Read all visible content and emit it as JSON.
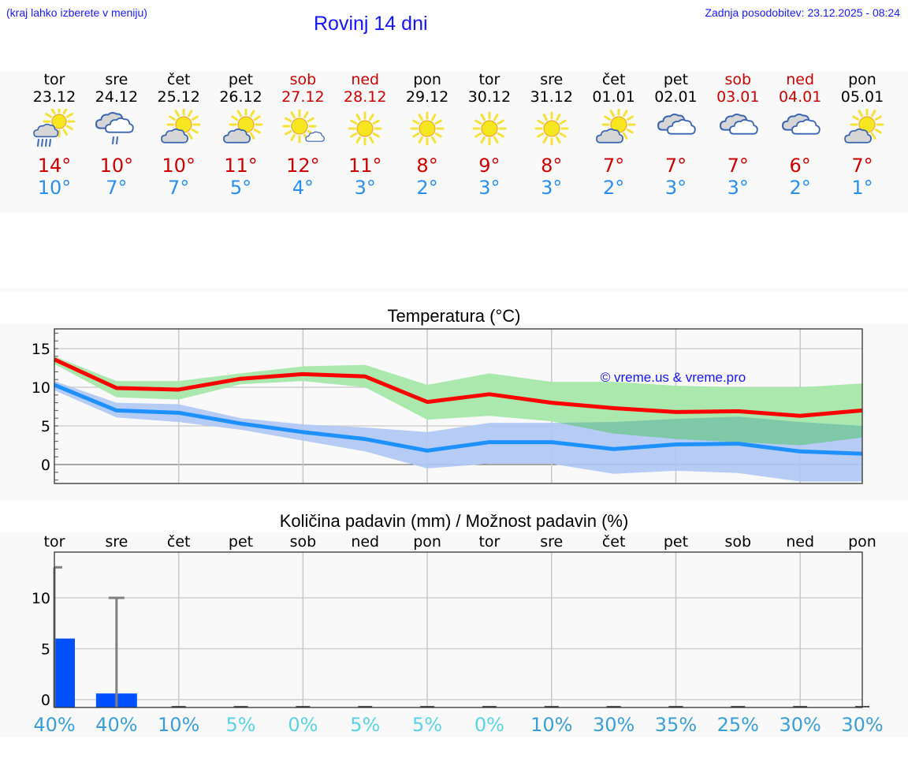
{
  "header": {
    "menu_hint": "(kraj lahko izberete v meniju)",
    "title": "Rovinj 14 dni",
    "last_update": "Zadnja posodobitev: 23.12.2025 - 08:24"
  },
  "forecast": {
    "days": [
      {
        "name": "tor",
        "date": "23.12",
        "icon": "partly-sunny-rain-icon",
        "tmax": "14°",
        "tmin": "10°",
        "weekend": false
      },
      {
        "name": "sre",
        "date": "24.12",
        "icon": "cloudy-light-rain-icon",
        "tmax": "10°",
        "tmin": "7°",
        "weekend": false
      },
      {
        "name": "čet",
        "date": "25.12",
        "icon": "partly-sunny-icon",
        "tmax": "10°",
        "tmin": "7°",
        "weekend": false
      },
      {
        "name": "pet",
        "date": "26.12",
        "icon": "partly-sunny-icon",
        "tmax": "11°",
        "tmin": "5°",
        "weekend": false
      },
      {
        "name": "sob",
        "date": "27.12",
        "icon": "mostly-sunny-icon",
        "tmax": "12°",
        "tmin": "4°",
        "weekend": true
      },
      {
        "name": "ned",
        "date": "28.12",
        "icon": "sunny-icon",
        "tmax": "11°",
        "tmin": "3°",
        "weekend": true
      },
      {
        "name": "pon",
        "date": "29.12",
        "icon": "sunny-icon",
        "tmax": "8°",
        "tmin": "2°",
        "weekend": false
      },
      {
        "name": "tor",
        "date": "30.12",
        "icon": "sunny-icon",
        "tmax": "9°",
        "tmin": "3°",
        "weekend": false
      },
      {
        "name": "sre",
        "date": "31.12",
        "icon": "sunny-icon",
        "tmax": "8°",
        "tmin": "3°",
        "weekend": false
      },
      {
        "name": "čet",
        "date": "01.01",
        "icon": "partly-sunny-icon",
        "tmax": "7°",
        "tmin": "2°",
        "weekend": false
      },
      {
        "name": "pet",
        "date": "02.01",
        "icon": "cloudy-icon",
        "tmax": "7°",
        "tmin": "3°",
        "weekend": false
      },
      {
        "name": "sob",
        "date": "03.01",
        "icon": "cloudy-icon",
        "tmax": "7°",
        "tmin": "3°",
        "weekend": true
      },
      {
        "name": "ned",
        "date": "04.01",
        "icon": "cloudy-icon",
        "tmax": "6°",
        "tmin": "2°",
        "weekend": true
      },
      {
        "name": "pon",
        "date": "05.01",
        "icon": "partly-sunny-icon",
        "tmax": "7°",
        "tmin": "1°",
        "weekend": false
      }
    ]
  },
  "colors": {
    "max_line": "#ff0000",
    "max_band": "#abe8ae",
    "min_line": "#1e90ff",
    "min_band": "#aec6f4",
    "overlap_band": "#7fc8a8",
    "precip_bar": "#0050ff",
    "error_bar": "#808080",
    "weekend": "#cc0000",
    "tmax": "#cc0000",
    "tmin": "#2a8ff0",
    "pct_high": "#3a9fd6",
    "pct_low": "#5ad3e6",
    "watermark": "#1414ff"
  },
  "chart_data": [
    {
      "type": "line",
      "title": "Temperatura (°C)",
      "xlabel": "",
      "ylabel": "°C",
      "ylim": [
        -2.5,
        17.5
      ],
      "yticks": [
        0,
        5,
        10,
        15
      ],
      "grid": true,
      "watermark": "© vreme.us & vreme.pro",
      "x": [
        "23.12",
        "24.12",
        "25.12",
        "26.12",
        "27.12",
        "28.12",
        "29.12",
        "30.12",
        "31.12",
        "01.01",
        "02.01",
        "03.01",
        "04.01",
        "05.01"
      ],
      "series": [
        {
          "name": "Max",
          "values": [
            13.6,
            9.9,
            9.7,
            11.1,
            11.7,
            11.4,
            8.1,
            9.1,
            8.0,
            7.3,
            6.8,
            6.9,
            6.3,
            7.0
          ]
        },
        {
          "name": "Max range low",
          "values": [
            13.0,
            8.7,
            8.4,
            10.4,
            10.8,
            10.0,
            5.8,
            6.3,
            5.6,
            4.0,
            3.3,
            2.9,
            2.5,
            3.5
          ]
        },
        {
          "name": "Max range high",
          "values": [
            14.0,
            10.8,
            10.8,
            11.8,
            12.7,
            12.9,
            10.3,
            11.8,
            10.7,
            10.7,
            10.2,
            10.0,
            10.0,
            10.5
          ]
        },
        {
          "name": "Min",
          "values": [
            10.3,
            7.0,
            6.7,
            5.3,
            4.2,
            3.3,
            1.8,
            2.9,
            2.9,
            2.0,
            2.6,
            2.7,
            1.7,
            1.4
          ]
        },
        {
          "name": "Min range low",
          "values": [
            9.6,
            6.1,
            5.5,
            4.5,
            3.1,
            1.7,
            -0.5,
            0.1,
            0.1,
            -1.2,
            -0.8,
            -1.1,
            -2.2,
            -2.2
          ]
        },
        {
          "name": "Min range high",
          "values": [
            10.8,
            8.0,
            7.8,
            6.0,
            5.2,
            4.8,
            4.2,
            5.4,
            5.4,
            5.5,
            5.9,
            6.2,
            5.5,
            5.0
          ]
        }
      ]
    },
    {
      "type": "bar",
      "title": "Količina padavin (mm) / Možnost padavin (%)",
      "xlabel": "",
      "ylabel": "mm",
      "ylim": [
        -0.8,
        14.5
      ],
      "yticks": [
        0,
        5,
        10
      ],
      "grid": true,
      "categories": [
        "tor",
        "sre",
        "čet",
        "pet",
        "sob",
        "ned",
        "pon",
        "tor",
        "sre",
        "čet",
        "pet",
        "sob",
        "ned",
        "pon"
      ],
      "values": [
        6.0,
        0.6,
        0,
        0,
        0,
        0,
        0,
        0,
        0,
        0,
        0,
        0,
        0,
        0
      ],
      "error_max": [
        13.0,
        10.0,
        0,
        0,
        0,
        0,
        0,
        0,
        0,
        0,
        0,
        0,
        0,
        0
      ],
      "probability": [
        "40%",
        "40%",
        "10%",
        "5%",
        "0%",
        "5%",
        "5%",
        "0%",
        "10%",
        "30%",
        "35%",
        "25%",
        "30%",
        "30%"
      ]
    }
  ]
}
